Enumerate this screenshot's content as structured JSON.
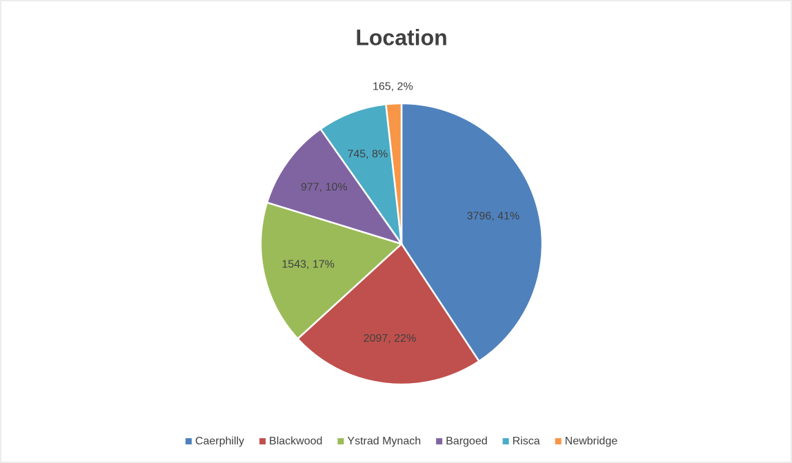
{
  "chart_data": {
    "type": "pie",
    "title": "Location",
    "categories": [
      "Caerphilly",
      "Blackwood",
      "Ystrad Mynach",
      "Bargoed",
      "Risca",
      "Newbridge"
    ],
    "values": [
      3796,
      2097,
      1543,
      977,
      745,
      165
    ],
    "value_labels": [
      "3796, 41%",
      "2097, 22%",
      "1543, 17%",
      "977, 10%",
      "745, 8%",
      "165, 2%"
    ],
    "colors": [
      "#4f81bd",
      "#c0504d",
      "#9bbb59",
      "#8064a2",
      "#4bacc6",
      "#f79646"
    ],
    "legend": "bottom"
  }
}
